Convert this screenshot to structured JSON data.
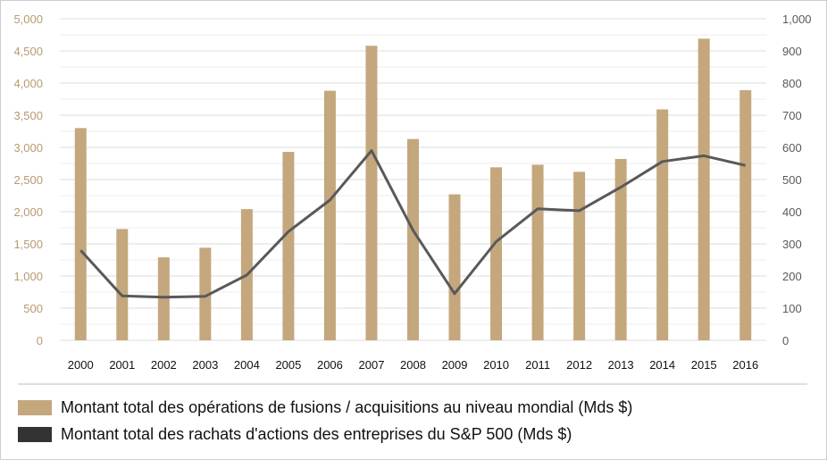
{
  "chart_data": {
    "type": "bar",
    "categories": [
      "2000",
      "2001",
      "2002",
      "2003",
      "2004",
      "2005",
      "2006",
      "2007",
      "2008",
      "2009",
      "2010",
      "2011",
      "2012",
      "2013",
      "2014",
      "2015",
      "2016"
    ],
    "series": [
      {
        "name": "Montant total des opérations de fusions / acquisitions au niveau mondial (Mds $)",
        "type": "bar",
        "axis": "left",
        "color": "#c4a77d",
        "values": [
          3300,
          1730,
          1290,
          1440,
          2040,
          2930,
          3880,
          4580,
          3130,
          2270,
          2690,
          2730,
          2620,
          2820,
          3590,
          4690,
          3890
        ]
      },
      {
        "name": "Montant total des rachats d'actions des entreprises du S&P 500 (Mds $)",
        "type": "line",
        "axis": "right",
        "color": "#595959",
        "values": [
          280,
          138,
          134,
          137,
          203,
          338,
          436,
          590,
          342,
          145,
          307,
          409,
          403,
          476,
          556,
          574,
          544
        ]
      }
    ],
    "y_left": {
      "min": 0,
      "max": 5000,
      "step": 500,
      "tick_labels": [
        "0",
        "500",
        "1,000",
        "1,500",
        "2,000",
        "2,500",
        "3,000",
        "3,500",
        "4,000",
        "4,500",
        "5,000"
      ],
      "color": "#b89a6e"
    },
    "y_right": {
      "min": 0,
      "max": 1000,
      "step": 100,
      "tick_labels": [
        "0",
        "100",
        "200",
        "300",
        "400",
        "500",
        "600",
        "700",
        "800",
        "900",
        "1,000"
      ],
      "color": "#595959"
    },
    "grid": true,
    "legend_position": "bottom",
    "legend": [
      {
        "label": "Montant total des opérations de fusions / acquisitions au niveau mondial (Mds $)",
        "color": "#c4a77d"
      },
      {
        "label": "Montant total des rachats d'actions des entreprises du S&P 500 (Mds $)",
        "color": "#333333"
      }
    ]
  }
}
